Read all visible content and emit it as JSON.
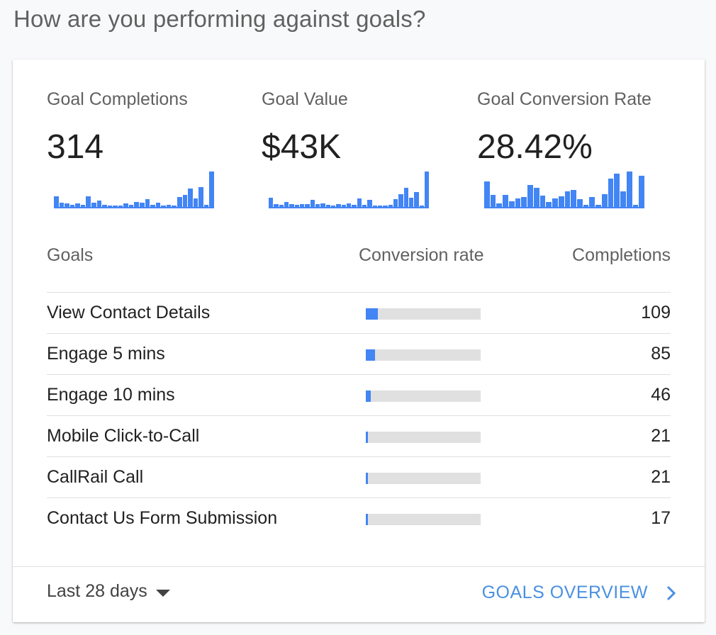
{
  "page_title": "How are you performing against goals?",
  "metrics": [
    {
      "label": "Goal Completions",
      "value": "314",
      "spark": [
        13,
        5,
        4,
        3,
        4,
        3,
        13,
        5,
        8,
        3,
        2,
        2,
        2,
        4,
        3,
        6,
        5,
        10,
        3,
        5,
        2,
        3,
        2,
        12,
        15,
        23,
        11,
        25,
        3,
        44
      ]
    },
    {
      "label": "Goal Value",
      "value": "$43K",
      "spark": [
        12,
        4,
        3,
        7,
        4,
        3,
        4,
        4,
        9,
        4,
        5,
        3,
        2,
        4,
        3,
        5,
        3,
        11,
        3,
        9,
        2,
        2,
        2,
        3,
        10,
        17,
        25,
        12,
        20,
        2,
        47
      ]
    },
    {
      "label": "Goal Conversion Rate",
      "value": "28.42%",
      "spark": [
        36,
        17,
        5,
        17,
        8,
        12,
        14,
        31,
        27,
        16,
        7,
        12,
        15,
        22,
        24,
        11,
        3,
        14,
        3,
        18,
        40,
        47,
        22,
        50,
        3,
        44
      ]
    }
  ],
  "table": {
    "headers": {
      "goals": "Goals",
      "rate": "Conversion rate",
      "completions": "Completions"
    },
    "rows": [
      {
        "name": "View Contact Details",
        "rate": 0.105,
        "completions": "109"
      },
      {
        "name": "Engage 5 mins",
        "rate": 0.08,
        "completions": "85"
      },
      {
        "name": "Engage 10 mins",
        "rate": 0.045,
        "completions": "46"
      },
      {
        "name": "Mobile Click-to-Call",
        "rate": 0.02,
        "completions": "21"
      },
      {
        "name": "CallRail Call",
        "rate": 0.02,
        "completions": "21"
      },
      {
        "name": "Contact Us Form Submission",
        "rate": 0.016,
        "completions": "17"
      }
    ]
  },
  "footer": {
    "date_range": "Last 28 days",
    "date_range_icon": "caret-down-icon",
    "overview_link": "GOALS OVERVIEW",
    "overview_icon": "chevron-right-icon"
  },
  "colors": {
    "accent": "#4285f4",
    "link": "#4a90e2",
    "track": "#e0e0e0"
  }
}
